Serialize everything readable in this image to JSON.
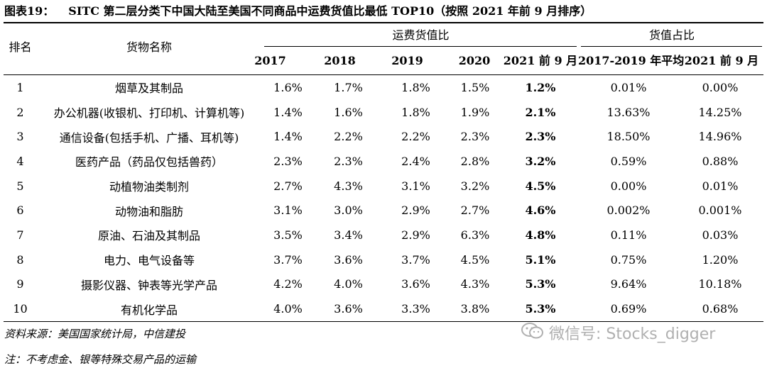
{
  "title": {
    "label": "图表19：",
    "text": "SITC 第二层分类下中国大陆至美国不同商品中运费货值比最低 TOP10（按照 2021 年前 9 月排序）"
  },
  "header": {
    "rank": "排名",
    "name": "货物名称",
    "group_freight": "运费货值比",
    "group_share": "货值占比",
    "years": [
      "2017",
      "2018",
      "2019",
      "2020",
      "2021 前 9 月"
    ],
    "share_cols": [
      "2017-2019 年平均",
      "2021 前 9 月"
    ]
  },
  "rows": [
    {
      "rank": "1",
      "name": "烟草及其制品",
      "y2017": "1.6%",
      "y2018": "1.7%",
      "y2019": "1.8%",
      "y2020": "1.5%",
      "y2021": "1.2%",
      "avg": "0.01%",
      "share2021": "0.00%"
    },
    {
      "rank": "2",
      "name": "办公机器(收银机、打印机、计算机等)",
      "y2017": "1.4%",
      "y2018": "1.6%",
      "y2019": "1.8%",
      "y2020": "1.9%",
      "y2021": "2.1%",
      "avg": "13.63%",
      "share2021": "14.25%"
    },
    {
      "rank": "3",
      "name": "通信设备(包括手机、广播、耳机等)",
      "y2017": "1.4%",
      "y2018": "2.2%",
      "y2019": "2.2%",
      "y2020": "2.3%",
      "y2021": "2.3%",
      "avg": "18.50%",
      "share2021": "14.96%"
    },
    {
      "rank": "4",
      "name": "医药产品（药品仅包括兽药）",
      "y2017": "2.3%",
      "y2018": "2.3%",
      "y2019": "2.4%",
      "y2020": "2.8%",
      "y2021": "3.2%",
      "avg": "0.59%",
      "share2021": "0.88%"
    },
    {
      "rank": "5",
      "name": "动植物油类制剂",
      "y2017": "2.7%",
      "y2018": "4.3%",
      "y2019": "3.1%",
      "y2020": "3.2%",
      "y2021": "4.5%",
      "avg": "0.00%",
      "share2021": "0.01%"
    },
    {
      "rank": "6",
      "name": "动物油和脂肪",
      "y2017": "3.1%",
      "y2018": "3.0%",
      "y2019": "2.9%",
      "y2020": "2.7%",
      "y2021": "4.6%",
      "avg": "0.002%",
      "share2021": "0.001%"
    },
    {
      "rank": "7",
      "name": "原油、石油及其制品",
      "y2017": "3.5%",
      "y2018": "3.4%",
      "y2019": "2.9%",
      "y2020": "6.3%",
      "y2021": "4.8%",
      "avg": "0.11%",
      "share2021": "0.03%"
    },
    {
      "rank": "8",
      "name": "电力、电气设备等",
      "y2017": "3.7%",
      "y2018": "3.6%",
      "y2019": "3.7%",
      "y2020": "4.5%",
      "y2021": "5.1%",
      "avg": "0.75%",
      "share2021": "1.20%"
    },
    {
      "rank": "9",
      "name": "摄影仪器、钟表等光学产品",
      "y2017": "4.2%",
      "y2018": "4.0%",
      "y2019": "3.6%",
      "y2020": "4.3%",
      "y2021": "5.3%",
      "avg": "9.64%",
      "share2021": "10.18%"
    },
    {
      "rank": "10",
      "name": "有机化学品",
      "y2017": "4.0%",
      "y2018": "3.6%",
      "y2019": "3.3%",
      "y2020": "3.8%",
      "y2021": "5.3%",
      "avg": "0.69%",
      "share2021": "0.68%"
    }
  ],
  "source": "资料来源：美国国家统计局，中信建投",
  "note": "注：不考虑金、银等特殊交易产品的运输",
  "watermark": {
    "icon": "wechat-icon",
    "text": "微信号: Stocks_digger"
  }
}
